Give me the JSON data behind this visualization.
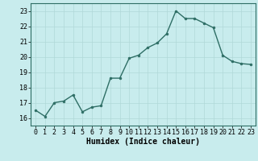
{
  "x": [
    0,
    1,
    2,
    3,
    4,
    5,
    6,
    7,
    8,
    9,
    10,
    11,
    12,
    13,
    14,
    15,
    16,
    17,
    18,
    19,
    20,
    21,
    22,
    23
  ],
  "y": [
    16.5,
    16.1,
    17.0,
    17.1,
    17.5,
    16.4,
    16.7,
    16.8,
    18.6,
    18.6,
    19.9,
    20.1,
    20.6,
    20.9,
    21.5,
    23.0,
    22.5,
    22.5,
    22.2,
    21.9,
    20.1,
    19.7,
    19.55,
    19.5
  ],
  "line_color": "#2e6e65",
  "marker_color": "#2e6e65",
  "bg_color": "#c8eced",
  "grid_color": "#b0d8d8",
  "xlabel": "Humidex (Indice chaleur)",
  "ylim": [
    15.5,
    23.5
  ],
  "xlim": [
    -0.5,
    23.5
  ],
  "yticks": [
    16,
    17,
    18,
    19,
    20,
    21,
    22,
    23
  ],
  "xticks": [
    0,
    1,
    2,
    3,
    4,
    5,
    6,
    7,
    8,
    9,
    10,
    11,
    12,
    13,
    14,
    15,
    16,
    17,
    18,
    19,
    20,
    21,
    22,
    23
  ],
  "tick_fontsize": 6,
  "label_fontsize": 7
}
